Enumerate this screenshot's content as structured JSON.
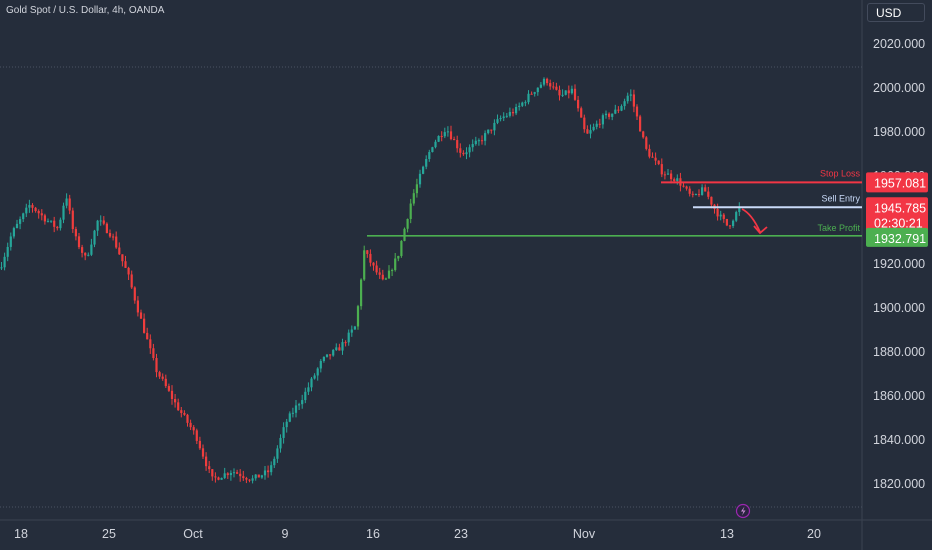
{
  "title": "Gold Spot / U.S. Dollar, 4h, OANDA",
  "currency_button": "USD",
  "colors": {
    "bg": "#252d3b",
    "up": "#26a69a",
    "upBright": "#4caf50",
    "down": "#ef3d3d",
    "stop": "#f23645",
    "entry": "#c9daf8",
    "tp": "#4caf50"
  },
  "chart_data": {
    "type": "candlestick",
    "symbol": "Gold Spot / U.S. Dollar",
    "interval": "4h",
    "source": "OANDA",
    "y_ticks": [
      "2020.000",
      "2000.000",
      "1980.000",
      "1960.000",
      "1940.000",
      "1920.000",
      "1900.000",
      "1880.000",
      "1860.000",
      "1840.000",
      "1820.000"
    ],
    "x_ticks": [
      "18",
      "25",
      "Oct",
      "9",
      "16",
      "23",
      "Nov",
      "13",
      "20"
    ],
    "ylim": [
      1808,
      2031
    ],
    "price_path": [
      [
        0,
        1918
      ],
      [
        12,
        1934
      ],
      [
        30,
        1947
      ],
      [
        44,
        1941
      ],
      [
        58,
        1936
      ],
      [
        66,
        1952
      ],
      [
        74,
        1933
      ],
      [
        86,
        1922
      ],
      [
        98,
        1940
      ],
      [
        112,
        1933
      ],
      [
        128,
        1915
      ],
      [
        140,
        1896
      ],
      [
        156,
        1872
      ],
      [
        176,
        1856
      ],
      [
        196,
        1842
      ],
      [
        212,
        1822
      ],
      [
        232,
        1826
      ],
      [
        252,
        1822
      ],
      [
        270,
        1826
      ],
      [
        286,
        1848
      ],
      [
        306,
        1862
      ],
      [
        322,
        1876
      ],
      [
        340,
        1882
      ],
      [
        356,
        1892
      ],
      [
        364,
        1926
      ],
      [
        374,
        1918
      ],
      [
        384,
        1911
      ],
      [
        398,
        1924
      ],
      [
        412,
        1950
      ],
      [
        432,
        1974
      ],
      [
        446,
        1982
      ],
      [
        462,
        1970
      ],
      [
        480,
        1976
      ],
      [
        500,
        1986
      ],
      [
        516,
        1990
      ],
      [
        532,
        1998
      ],
      [
        546,
        2004
      ],
      [
        560,
        1996
      ],
      [
        572,
        1999
      ],
      [
        586,
        1978
      ],
      [
        602,
        1986
      ],
      [
        618,
        1990
      ],
      [
        630,
        1998
      ],
      [
        646,
        1972
      ],
      [
        662,
        1962
      ],
      [
        678,
        1958
      ],
      [
        692,
        1950
      ],
      [
        704,
        1954
      ],
      [
        716,
        1944
      ],
      [
        728,
        1937
      ],
      [
        740,
        1946
      ]
    ],
    "levels": [
      {
        "name": "Stop Loss",
        "value": 1957.081,
        "label": "1957.081"
      },
      {
        "name": "Sell Entry",
        "value": 1945.785,
        "label": "1945.785"
      },
      {
        "name": "Take Profit",
        "value": 1932.791,
        "label": "1932.791"
      }
    ],
    "countdown": "02:30:21",
    "projection": "down"
  }
}
